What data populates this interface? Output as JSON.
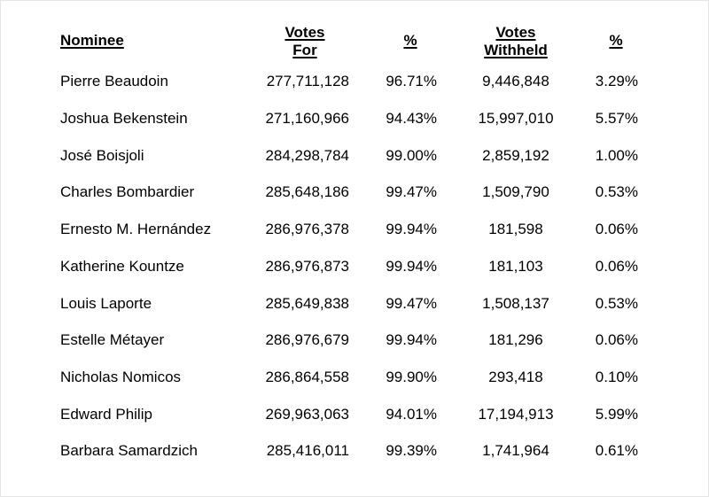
{
  "table": {
    "headers": {
      "nominee": "Nominee",
      "votes_for_line1": "Votes",
      "votes_for_line2": "For",
      "pct_for": "%",
      "votes_withheld_line1": "Votes",
      "votes_withheld_line2": "Withheld",
      "pct_withheld": "%"
    },
    "rows": [
      {
        "name": "Pierre Beaudoin",
        "votes_for": "277,711,128",
        "pct_for": "96.71%",
        "votes_withheld": "9,446,848",
        "pct_withheld": "3.29%"
      },
      {
        "name": "Joshua Bekenstein",
        "votes_for": "271,160,966",
        "pct_for": "94.43%",
        "votes_withheld": "15,997,010",
        "pct_withheld": "5.57%"
      },
      {
        "name": "José Boisjoli",
        "votes_for": "284,298,784",
        "pct_for": "99.00%",
        "votes_withheld": "2,859,192",
        "pct_withheld": "1.00%"
      },
      {
        "name": "Charles Bombardier",
        "votes_for": "285,648,186",
        "pct_for": "99.47%",
        "votes_withheld": "1,509,790",
        "pct_withheld": "0.53%"
      },
      {
        "name": "Ernesto M. Hernández",
        "votes_for": "286,976,378",
        "pct_for": "99.94%",
        "votes_withheld": "181,598",
        "pct_withheld": "0.06%"
      },
      {
        "name": "Katherine Kountze",
        "votes_for": "286,976,873",
        "pct_for": "99.94%",
        "votes_withheld": "181,103",
        "pct_withheld": "0.06%"
      },
      {
        "name": "Louis Laporte",
        "votes_for": "285,649,838",
        "pct_for": "99.47%",
        "votes_withheld": "1,508,137",
        "pct_withheld": "0.53%"
      },
      {
        "name": "Estelle Métayer",
        "votes_for": "286,976,679",
        "pct_for": "99.94%",
        "votes_withheld": "181,296",
        "pct_withheld": "0.06%"
      },
      {
        "name": "Nicholas Nomicos",
        "votes_for": "286,864,558",
        "pct_for": "99.90%",
        "votes_withheld": "293,418",
        "pct_withheld": "0.10%"
      },
      {
        "name": "Edward Philip",
        "votes_for": "269,963,063",
        "pct_for": "94.01%",
        "votes_withheld": "17,194,913",
        "pct_withheld": "5.99%"
      },
      {
        "name": "Barbara Samardzich",
        "votes_for": "285,416,011",
        "pct_for": "99.39%",
        "votes_withheld": "1,741,964",
        "pct_withheld": "0.61%"
      }
    ]
  }
}
